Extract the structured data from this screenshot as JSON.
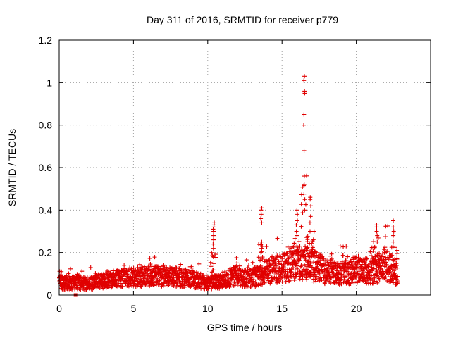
{
  "chart_data": {
    "type": "scatter",
    "title": "Day 311 of 2016, SRMTID for receiver p779",
    "xlabel": "GPS time / hours",
    "ylabel": "SRMTID / TECUs",
    "xlim": [
      0,
      25
    ],
    "ylim": [
      0,
      1.2
    ],
    "xticks": [
      0,
      5,
      10,
      15,
      20
    ],
    "xtick_labels": [
      "0",
      "5",
      "10",
      "15",
      "20"
    ],
    "yticks": [
      0,
      0.2,
      0.4,
      0.6,
      0.8,
      1.0,
      1.2
    ],
    "ytick_labels": [
      "0",
      "0.2",
      "0.4",
      "0.6",
      "0.8",
      "1",
      "1.2"
    ],
    "grid": true,
    "marker": "+",
    "color": "#e00000",
    "series": [
      {
        "name": "SRMTID",
        "baseline_profile": [
          [
            0,
            0.06
          ],
          [
            2,
            0.055
          ],
          [
            3,
            0.07
          ],
          [
            5,
            0.085
          ],
          [
            7,
            0.09
          ],
          [
            9,
            0.075
          ],
          [
            10,
            0.06
          ],
          [
            11,
            0.07
          ],
          [
            12,
            0.09
          ],
          [
            13,
            0.08
          ],
          [
            14,
            0.11
          ],
          [
            15,
            0.13
          ],
          [
            16,
            0.16
          ],
          [
            17,
            0.14
          ],
          [
            18,
            0.11
          ],
          [
            19,
            0.1
          ],
          [
            20,
            0.12
          ],
          [
            21,
            0.11
          ],
          [
            22,
            0.15
          ],
          [
            22.8,
            0.09
          ]
        ],
        "spikes": [
          {
            "x": 10.4,
            "y": [
              0.18,
              0.22,
              0.24,
              0.26,
              0.28,
              0.3,
              0.31,
              0.32,
              0.33,
              0.34
            ]
          },
          {
            "x": 13.6,
            "y": [
              0.2,
              0.22,
              0.24,
              0.25,
              0.34,
              0.36,
              0.38,
              0.4,
              0.41
            ]
          },
          {
            "x": 16.5,
            "y": [
              0.4,
              0.45,
              0.52,
              0.56,
              0.68,
              0.8,
              0.85,
              0.95,
              0.96,
              1.01,
              1.03
            ]
          },
          {
            "x": 16.0,
            "y": [
              0.28,
              0.3,
              0.33,
              0.35,
              0.38,
              0.4
            ]
          },
          {
            "x": 16.9,
            "y": [
              0.3,
              0.34,
              0.37,
              0.42,
              0.45,
              0.46
            ]
          },
          {
            "x": 21.4,
            "y": [
              0.25,
              0.28,
              0.3,
              0.32,
              0.33
            ]
          },
          {
            "x": 22.5,
            "y": [
              0.25,
              0.28,
              0.3,
              0.32,
              0.35
            ]
          }
        ],
        "outliers": [
          [
            1.1,
            0.0
          ]
        ]
      }
    ]
  }
}
